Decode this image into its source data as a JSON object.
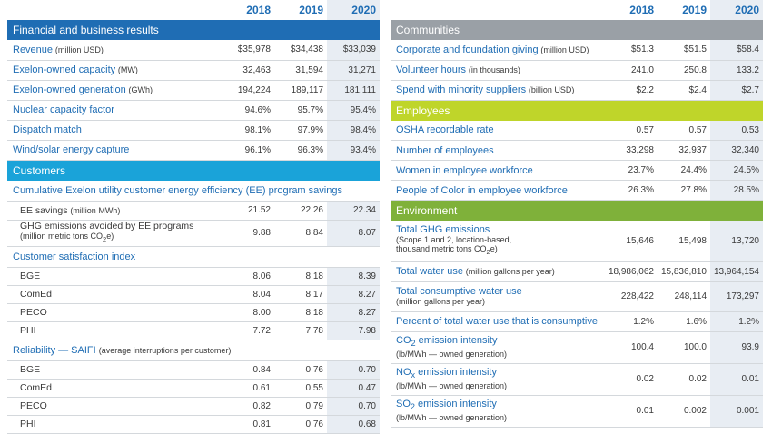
{
  "years": [
    "2018",
    "2019",
    "2020"
  ],
  "left": {
    "financial": {
      "title": "Financial and business results",
      "rows": [
        {
          "label": "Revenue",
          "unit": "(million USD)",
          "values": [
            "$35,978",
            "$34,438",
            "$33,039"
          ]
        },
        {
          "label": "Exelon-owned capacity",
          "unit": "(MW)",
          "values": [
            "32,463",
            "31,594",
            "31,271"
          ]
        },
        {
          "label": "Exelon-owned generation",
          "unit": "(GWh)",
          "values": [
            "194,224",
            "189,117",
            "181,111"
          ]
        },
        {
          "label": "Nuclear capacity factor",
          "unit": "",
          "values": [
            "94.6%",
            "95.7%",
            "95.4%"
          ]
        },
        {
          "label": "Dispatch match",
          "unit": "",
          "values": [
            "98.1%",
            "97.9%",
            "98.4%"
          ]
        },
        {
          "label": "Wind/solar energy capture",
          "unit": "",
          "values": [
            "96.1%",
            "96.3%",
            "93.4%"
          ]
        }
      ]
    },
    "customers": {
      "title": "Customers",
      "ee_title": "Cumulative Exelon utility customer energy efficiency (EE) program savings",
      "ee_savings": {
        "label": "EE savings",
        "unit": "(million MWh)",
        "values": [
          "21.52",
          "22.26",
          "22.34"
        ]
      },
      "ghg_avoided": {
        "label": "GHG emissions avoided by EE programs",
        "unit_pre": "(million metric tons CO",
        "unit_sub": "2",
        "unit_post": "e)",
        "values": [
          "9.88",
          "8.84",
          "8.07"
        ]
      },
      "csi_title": "Customer satisfaction index",
      "csi_rows": [
        {
          "label": "BGE",
          "values": [
            "8.06",
            "8.18",
            "8.39"
          ]
        },
        {
          "label": "ComEd",
          "values": [
            "8.04",
            "8.17",
            "8.27"
          ]
        },
        {
          "label": "PECO",
          "values": [
            "8.00",
            "8.18",
            "8.27"
          ]
        },
        {
          "label": "PHI",
          "values": [
            "7.72",
            "7.78",
            "7.98"
          ]
        }
      ],
      "saifi_title": "Reliability — SAIFI",
      "saifi_unit": "(average interruptions per customer)",
      "saifi_rows": [
        {
          "label": "BGE",
          "values": [
            "0.84",
            "0.76",
            "0.70"
          ]
        },
        {
          "label": "ComEd",
          "values": [
            "0.61",
            "0.55",
            "0.47"
          ]
        },
        {
          "label": "PECO",
          "values": [
            "0.82",
            "0.79",
            "0.70"
          ]
        },
        {
          "label": "PHI",
          "values": [
            "0.81",
            "0.76",
            "0.68"
          ]
        }
      ]
    }
  },
  "right": {
    "communities": {
      "title": "Communities",
      "rows": [
        {
          "label": "Corporate and foundation giving",
          "unit": "(million USD)",
          "values": [
            "$51.3",
            "$51.5",
            "$58.4"
          ]
        },
        {
          "label": "Volunteer hours",
          "unit": "(in thousands)",
          "values": [
            "241.0",
            "250.8",
            "133.2"
          ]
        },
        {
          "label": "Spend with minority suppliers",
          "unit": "(billion USD)",
          "values": [
            "$2.2",
            "$2.4",
            "$2.7"
          ]
        }
      ]
    },
    "employees": {
      "title": "Employees",
      "rows": [
        {
          "label": "OSHA recordable rate",
          "values": [
            "0.57",
            "0.57",
            "0.53"
          ]
        },
        {
          "label": "Number of employees",
          "values": [
            "33,298",
            "32,937",
            "32,340"
          ]
        },
        {
          "label": "Women in employee workforce",
          "values": [
            "23.7%",
            "24.4%",
            "24.5%"
          ]
        },
        {
          "label": "People of Color in employee workforce",
          "values": [
            "26.3%",
            "27.8%",
            "28.5%"
          ]
        }
      ]
    },
    "environment": {
      "title": "Environment",
      "total_ghg": {
        "label": "Total GHG emissions",
        "note1": "(Scope 1 and 2, location-based,",
        "note2_pre": "thousand metric tons CO",
        "note2_sub": "2",
        "note2_post": "e)",
        "values": [
          "15,646",
          "15,498",
          "13,720"
        ]
      },
      "water_use": {
        "label": "Total water use",
        "unit": "(million gallons per year)",
        "values": [
          "18,986,062",
          "15,836,810",
          "13,964,154"
        ]
      },
      "consumptive": {
        "label": "Total consumptive water use",
        "note": "(million gallons per year)",
        "values": [
          "228,422",
          "248,114",
          "173,297"
        ]
      },
      "pct_consumptive": {
        "label": "Percent of total water use that is consumptive",
        "values": [
          "1.2%",
          "1.6%",
          "1.2%"
        ]
      },
      "co2": {
        "label_pre": "CO",
        "label_sub": "2",
        "label_post": " emission intensity",
        "note": "(lb/MWh — owned generation)",
        "values": [
          "100.4",
          "100.0",
          "93.9"
        ]
      },
      "nox": {
        "label_pre": "NO",
        "label_sub": "x",
        "label_post": " emission intensity",
        "note": "(lb/MWh — owned generation)",
        "values": [
          "0.02",
          "0.02",
          "0.01"
        ]
      },
      "so2": {
        "label_pre": "SO",
        "label_sub": "2",
        "label_post": " emission intensity",
        "note": "(lb/MWh — owned generation)",
        "values": [
          "0.01",
          "0.002",
          "0.001"
        ]
      }
    }
  }
}
